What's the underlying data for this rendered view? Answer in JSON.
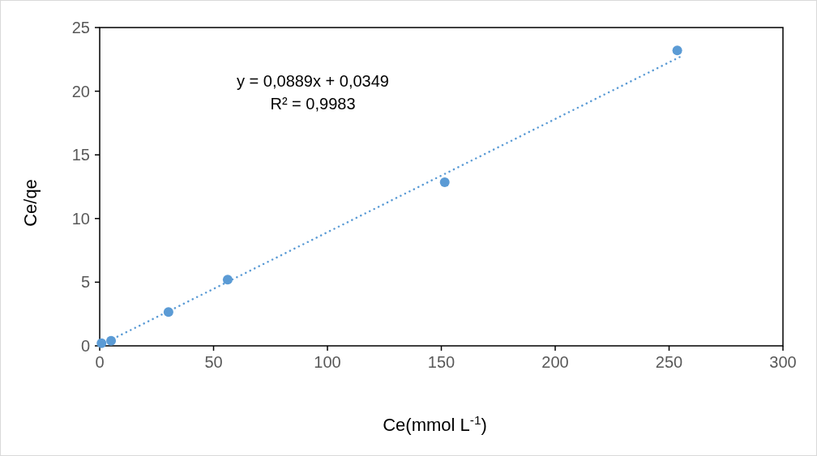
{
  "chart_data": {
    "type": "scatter",
    "xlabel": "Ce(mmol L$^{-1}$)",
    "ylabel": "Ce/qe",
    "xlim": [
      0,
      300
    ],
    "xticks": [
      0,
      50,
      100,
      150,
      200,
      250,
      300
    ],
    "ylim": [
      0,
      25
    ],
    "yticks": [
      0,
      5,
      10,
      15,
      20,
      25
    ],
    "grid": false,
    "marker": "circle",
    "annotations": [
      "y = 0,0889x + 0,0349",
      "R² = 0,9983"
    ],
    "series": [
      {
        "type": "scatter",
        "color": "#5b9bd5",
        "x": [
          0.8,
          5,
          30.2,
          56.2,
          151.5,
          253.6
        ],
        "values": [
          0.2,
          0.4,
          2.65,
          5.2,
          12.85,
          23.2
        ]
      },
      {
        "type": "line",
        "color": "#5b9bd5",
        "line_style": "dotted",
        "marker": "none",
        "x": [
          0,
          256
        ],
        "values": [
          0.03,
          22.8
        ]
      }
    ]
  }
}
